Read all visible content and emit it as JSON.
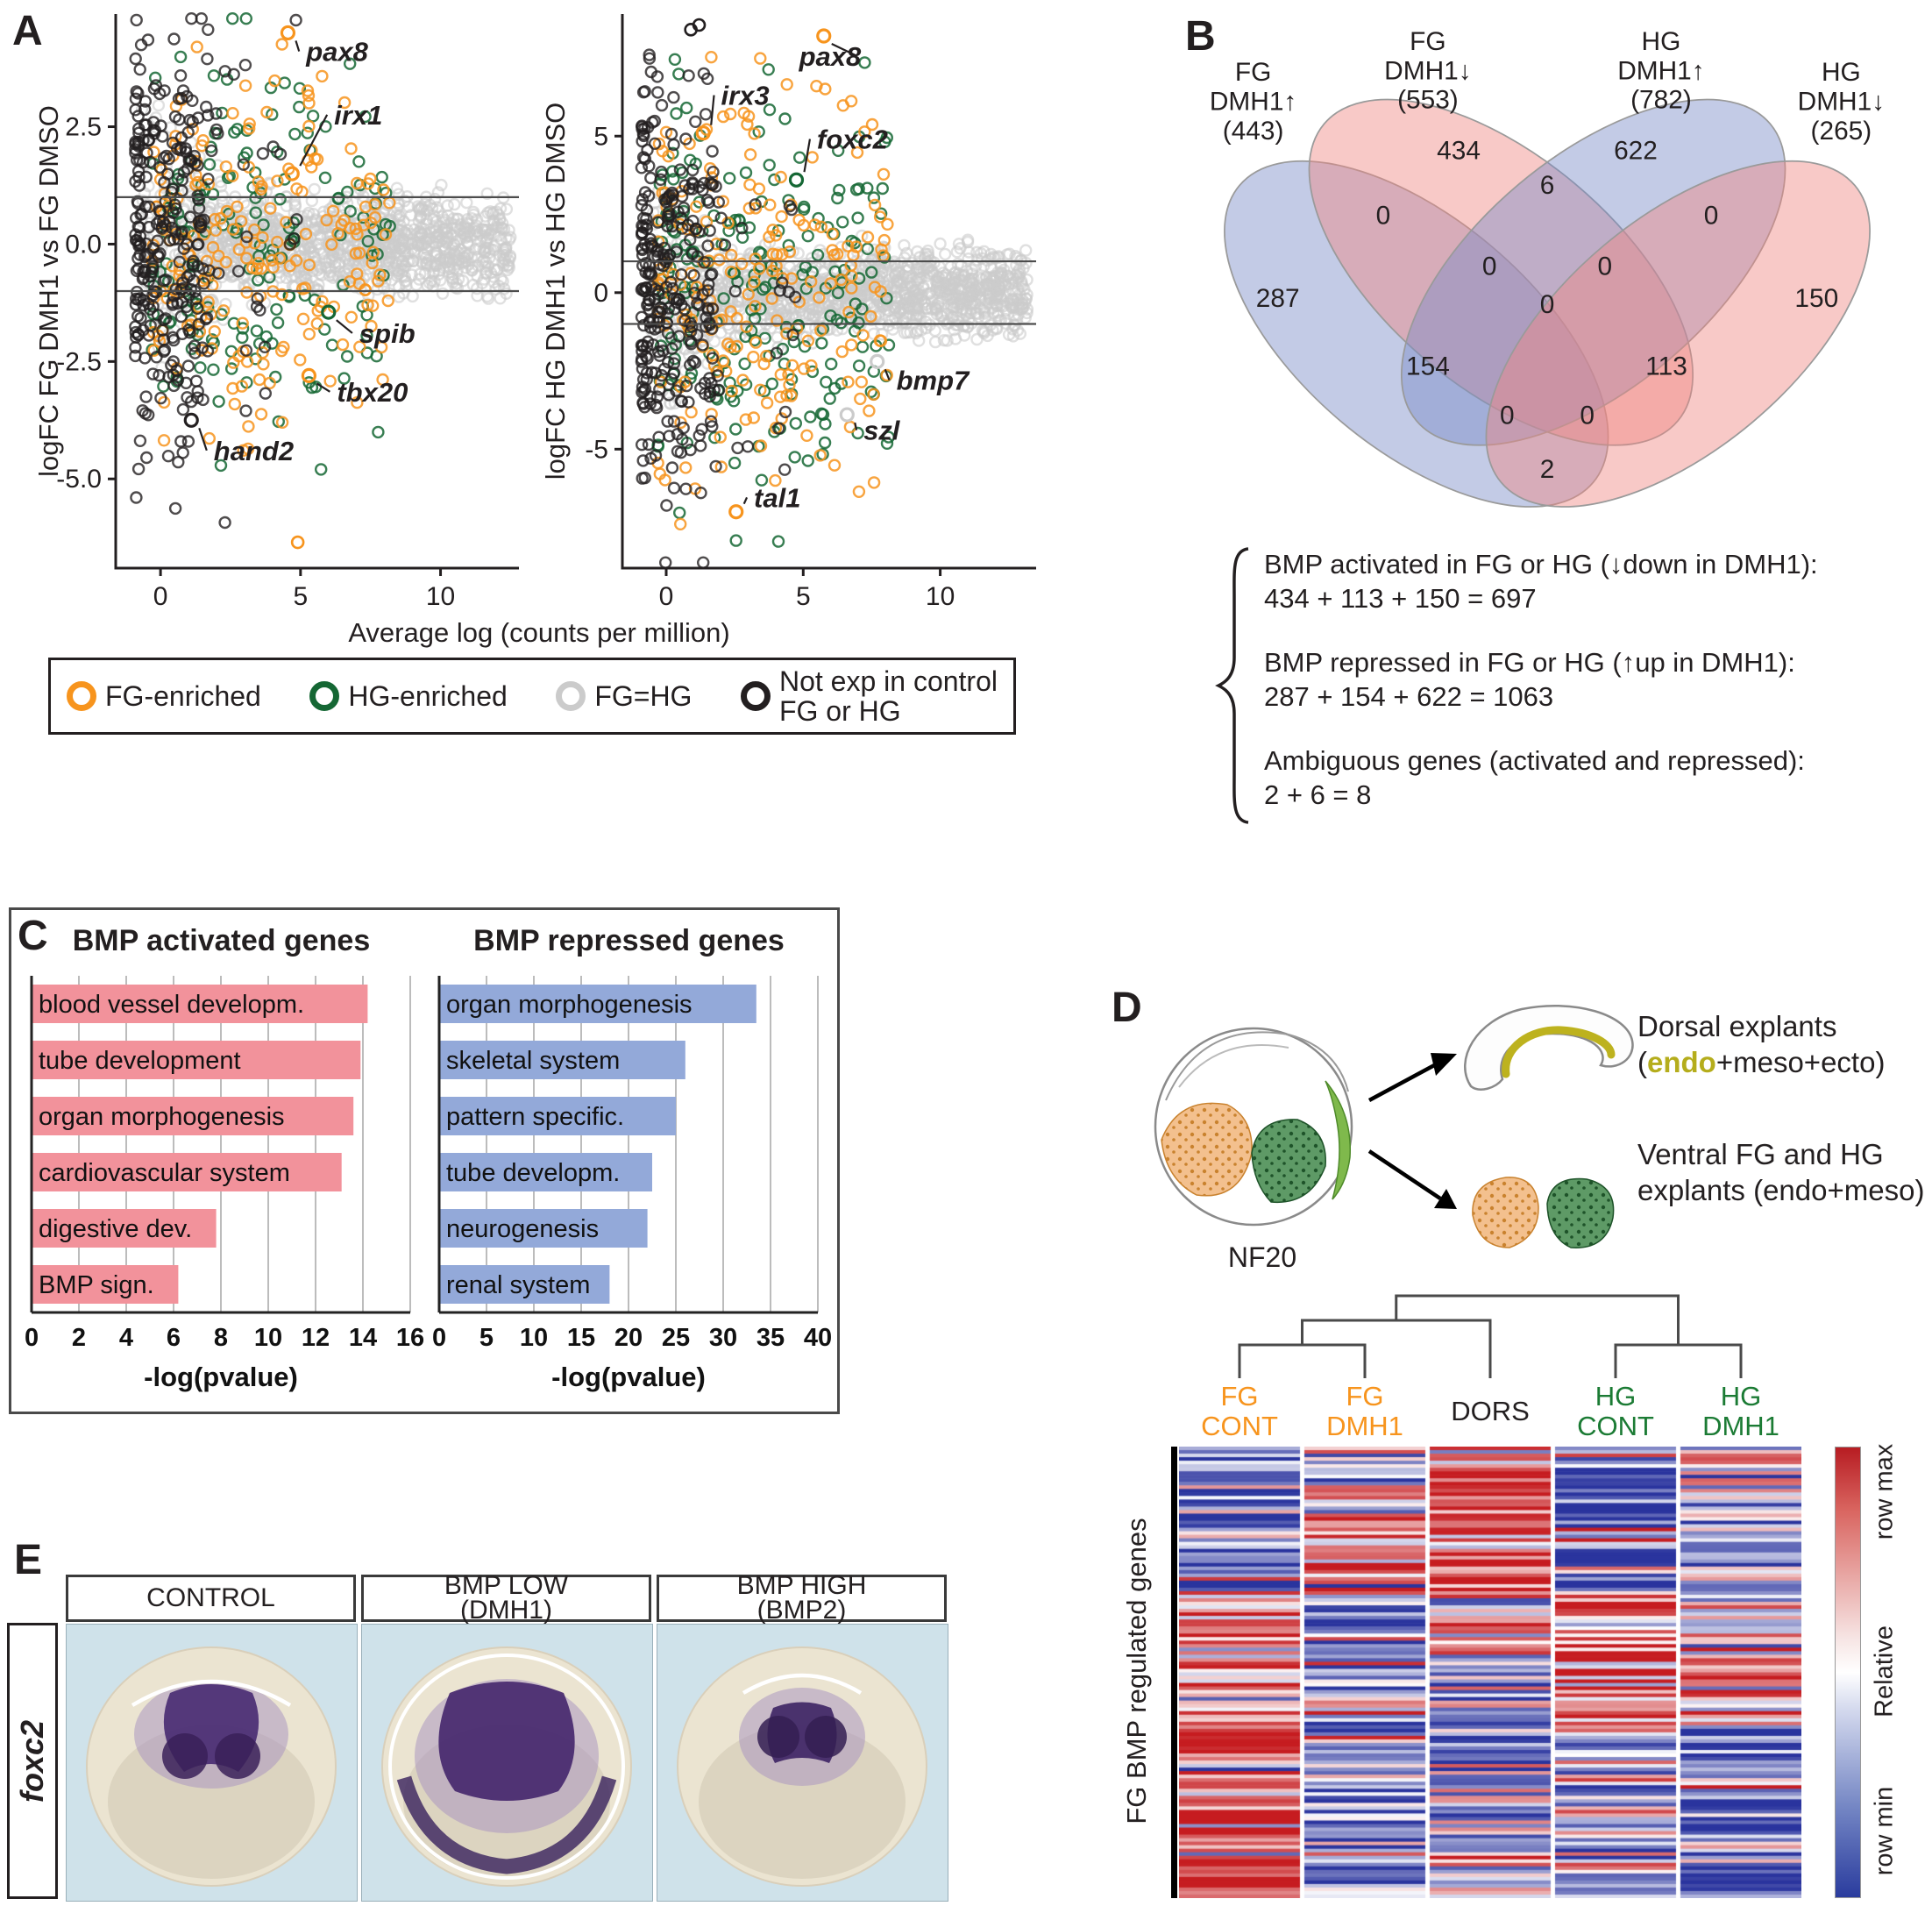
{
  "colors": {
    "fg_enriched": "#F7941D",
    "hg_enriched": "#156734",
    "fg_eq_hg": "#CBCBCB",
    "not_exp": "#231F20",
    "venn_blue": "#7B8CC8",
    "venn_red": "#F08783",
    "bar_pink": "#F2929B",
    "bar_blue": "#93A9D9",
    "fg_text": "#F7941D",
    "hg_text": "#1B7B34",
    "endo_text": "#B5AD1C"
  },
  "figure": {
    "panel_a": {
      "label": "A",
      "xlabel_shared": "Average log (counts per million)",
      "legend": [
        {
          "label": "FG-enriched",
          "color_key": "fg_enriched"
        },
        {
          "label": "HG-enriched",
          "color_key": "hg_enriched"
        },
        {
          "label": "FG=HG",
          "color_key": "fg_eq_hg"
        },
        {
          "label": "Not exp in control FG or HG",
          "lines": [
            "Not exp in control",
            "FG or HG"
          ],
          "color_key": "not_exp"
        }
      ]
    },
    "panel_b": {
      "label": "B",
      "sets": [
        {
          "lines": [
            "FG",
            "DMH1↑"
          ],
          "count": "(443)"
        },
        {
          "lines": [
            "FG",
            "DMH1↓"
          ],
          "count": "(553)"
        },
        {
          "lines": [
            "HG",
            "DMH1↑"
          ],
          "count": "(782)"
        },
        {
          "lines": [
            "HG",
            "DMH1↓"
          ],
          "count": "(265)"
        }
      ],
      "summary": [
        {
          "line1": "BMP activated in FG or HG (↓down in DMH1):",
          "line2": "434 + 113 + 150 = 697"
        },
        {
          "line1": "BMP repressed in FG or HG (↑up in DMH1):",
          "line2": "287 + 154 + 622 = 1063"
        },
        {
          "line1": "Ambiguous genes (activated and repressed):",
          "line2": "2 + 6 = 8"
        }
      ]
    },
    "panel_c": {
      "label": "C"
    },
    "panel_d": {
      "label": "D",
      "stage": "NF20",
      "dorsal_caption_line1": "Dorsal explants",
      "dorsal_caption_pre": "(",
      "dorsal_caption_endo": "endo",
      "dorsal_caption_post": "+meso+ecto)",
      "ventral_caption_line1": "Ventral FG and HG",
      "ventral_caption_line2": "explants (endo+meso)",
      "heatmap_row_label": "FG BMP regulated genes",
      "scale_label": "Relative",
      "scale_max": "row max",
      "scale_min": "row min",
      "columns": [
        {
          "lines": [
            "FG",
            "CONT"
          ],
          "color_key": "fg_text"
        },
        {
          "lines": [
            "FG",
            "DMH1"
          ],
          "color_key": "fg_text"
        },
        {
          "lines": [
            "DORS"
          ],
          "color_key": "not_exp"
        },
        {
          "lines": [
            "HG",
            "CONT"
          ],
          "color_key": "hg_text"
        },
        {
          "lines": [
            "HG",
            "DMH1"
          ],
          "color_key": "hg_text"
        }
      ]
    },
    "panel_e": {
      "label": "E",
      "gene": "foxc2",
      "conditions": [
        {
          "lines": [
            "CONTROL"
          ]
        },
        {
          "lines": [
            "BMP LOW",
            "(DMH1)"
          ]
        },
        {
          "lines": [
            "BMP HIGH",
            "(BMP2)"
          ]
        }
      ]
    }
  },
  "chart_data": [
    {
      "id": "ma_fg",
      "type": "scatter",
      "title": "MA plot FG DMH1 vs FG DMSO",
      "xlabel": "Average log (counts per million)",
      "ylabel": "logFC FG DMH1 vs FG DMSO",
      "xlim": [
        -1.6,
        12.8
      ],
      "ylim": [
        -6.9,
        4.9
      ],
      "yticks": [
        2.5,
        0,
        -2.5,
        -5
      ],
      "ytick_labels": [
        "2.5",
        "0.0",
        "-2.5",
        "-5.0"
      ],
      "xticks": [
        0,
        5,
        10
      ],
      "xtick_labels": [
        "0",
        "5",
        "10"
      ],
      "threshold_lines": [
        1,
        -1
      ],
      "point_classes": [
        "FG-enriched",
        "HG-enriched",
        "FG=HG",
        "Not exp in control FG or HG"
      ],
      "annotations": [
        {
          "gene": "pax8",
          "px": 4.55,
          "py": 4.5,
          "lx": 5.2,
          "ly": 3.9,
          "color_key": "fg_enriched"
        },
        {
          "gene": "irx1",
          "px": 4.7,
          "py": 1.5,
          "lx": 6.2,
          "ly": 2.55,
          "color_key": "fg_enriched"
        },
        {
          "gene": "spib",
          "px": 6.0,
          "py": -1.45,
          "lx": 7.1,
          "ly": -2.1,
          "color_key": "hg_enriched"
        },
        {
          "gene": "tbx20",
          "px": 5.3,
          "py": -2.8,
          "lx": 6.3,
          "ly": -3.35,
          "color_key": "fg_enriched"
        },
        {
          "gene": "hand2",
          "px": 1.1,
          "py": -3.75,
          "lx": 1.9,
          "ly": -4.6,
          "color_key": "not_exp"
        }
      ],
      "extra_points": [
        {
          "x": 4.9,
          "y": -6.35,
          "color_key": "fg_enriched"
        }
      ],
      "gen": {
        "seed": 7,
        "main_y": 1.0,
        "y_spread": 1.9,
        "y_left": 2.2,
        "groups": [
          {
            "color_key": "fg_eq_hg",
            "n": 1150,
            "kind": "main",
            "op": 0.6
          },
          {
            "color_key": "hg_enriched",
            "n": 165,
            "kind": "spread",
            "op": 0.85
          },
          {
            "color_key": "fg_enriched",
            "n": 205,
            "kind": "spread",
            "op": 0.85
          },
          {
            "color_key": "not_exp",
            "n": 300,
            "kind": "left",
            "op": 0.8
          }
        ]
      }
    },
    {
      "id": "ma_hg",
      "type": "scatter",
      "title": "MA plot HG DMH1 vs HG DMSO",
      "xlabel": "Average log (counts per million)",
      "ylabel": "logFC HG DMH1 vs HG DMSO",
      "xlim": [
        -1.6,
        13.5
      ],
      "ylim": [
        -8.8,
        8.9
      ],
      "yticks": [
        5,
        0,
        -5
      ],
      "ytick_labels": [
        "5",
        "0",
        "-5"
      ],
      "xticks": [
        0,
        5,
        10
      ],
      "xtick_labels": [
        "0",
        "5",
        "10"
      ],
      "threshold_lines": [
        1,
        -1
      ],
      "point_classes": [
        "FG-enriched",
        "HG-enriched",
        "FG=HG",
        "Not exp in control FG or HG"
      ],
      "annotations": [
        {
          "gene": "irx3",
          "px": 1.35,
          "py": 5.1,
          "lx": 2.0,
          "ly": 6.0,
          "color_key": "fg_enriched"
        },
        {
          "gene": "pax8",
          "px": 5.75,
          "py": 8.2,
          "lx": 4.85,
          "ly": 7.25,
          "color_key": "fg_enriched"
        },
        {
          "gene": "foxc2",
          "px": 4.75,
          "py": 3.6,
          "lx": 5.5,
          "ly": 4.6,
          "color_key": "hg_enriched"
        },
        {
          "gene": "bmp7",
          "px": 7.7,
          "py": -2.2,
          "lx": 8.4,
          "ly": -3.1,
          "color_key": "fg_eq_hg"
        },
        {
          "gene": "szl",
          "px": 6.6,
          "py": -3.9,
          "lx": 7.2,
          "ly": -4.7,
          "color_key": "fg_eq_hg"
        },
        {
          "gene": "tal1",
          "px": 2.55,
          "py": -7.0,
          "lx": 3.2,
          "ly": -6.85,
          "color_key": "fg_enriched"
        }
      ],
      "extra_points": [
        {
          "x": 0.9,
          "y": 8.4,
          "color_key": "not_exp"
        },
        {
          "x": 1.2,
          "y": 8.55,
          "color_key": "not_exp"
        }
      ],
      "gen": {
        "seed": 13,
        "main_y": 1.3,
        "y_spread": 3.0,
        "y_left": 3.2,
        "groups": [
          {
            "color_key": "fg_eq_hg",
            "n": 1150,
            "kind": "main",
            "op": 0.6
          },
          {
            "color_key": "hg_enriched",
            "n": 210,
            "kind": "spread",
            "op": 0.85
          },
          {
            "color_key": "fg_enriched",
            "n": 200,
            "kind": "spread",
            "op": 0.85
          },
          {
            "color_key": "not_exp",
            "n": 310,
            "kind": "left",
            "op": 0.8
          }
        ]
      }
    },
    {
      "id": "venn4",
      "type": "venn4",
      "title": "DMH1 regulated genes in FG and HG",
      "sets": [
        {
          "name": "FG DMH1 up",
          "total": 443
        },
        {
          "name": "FG DMH1 down",
          "total": 553
        },
        {
          "name": "HG DMH1 up",
          "total": 782
        },
        {
          "name": "HG DMH1 down",
          "total": 265
        }
      ],
      "regions": {
        "A": 287,
        "B": 434,
        "C": 622,
        "D": 150,
        "AB": 0,
        "BC": 6,
        "CD": 0,
        "AC": 154,
        "BD": 113,
        "AD": 2,
        "ABC": 0,
        "ABD": 0,
        "ACD": 0,
        "BCD": 0,
        "ABCD": 0
      }
    },
    {
      "id": "bmp_activated",
      "type": "bar",
      "orientation": "horizontal",
      "title": "BMP activated genes",
      "categories": [
        "blood vessel developm.",
        "tube development",
        "organ morphogenesis",
        "cardiovascular system",
        "digestive dev.",
        "BMP sign."
      ],
      "values": [
        14.2,
        13.9,
        13.6,
        13.1,
        7.8,
        6.2
      ],
      "xlabel": "-log(pvalue)",
      "xlim": [
        0,
        16
      ],
      "xticks": [
        0,
        2,
        4,
        6,
        8,
        10,
        12,
        14,
        16
      ],
      "xtick_labels": [
        "0",
        "2",
        "4",
        "6",
        "8",
        "10",
        "12",
        "14",
        "16"
      ],
      "bar_color_key": "bar_pink"
    },
    {
      "id": "bmp_repressed",
      "type": "bar",
      "orientation": "horizontal",
      "title": "BMP repressed genes",
      "categories": [
        "organ morphogenesis",
        "skeletal system",
        "pattern specific.",
        "tube developm.",
        "neurogenesis",
        "renal system"
      ],
      "values": [
        33.5,
        26,
        25,
        22.5,
        22,
        18
      ],
      "xlabel": "-log(pvalue)",
      "xlim": [
        0,
        40
      ],
      "xticks": [
        0,
        5,
        10,
        15,
        20,
        25,
        30,
        35,
        40
      ],
      "xtick_labels": [
        "0",
        "5",
        "10",
        "15",
        "20",
        "25",
        "30",
        "35",
        "40"
      ],
      "bar_color_key": "bar_blue"
    },
    {
      "id": "heatmap",
      "type": "heatmap",
      "title": "FG BMP regulated genes across explants",
      "columns": [
        "FG CONT",
        "FG DMH1",
        "DORS",
        "HG CONT",
        "HG DMH1"
      ],
      "row_group_label": "FG BMP regulated genes",
      "scale": {
        "title": "Relative",
        "max_label": "row max",
        "min_label": "row min"
      },
      "seed": 11,
      "noise": 0.5,
      "flip_prob": 0.1,
      "blocks": [
        {
          "rows": 20,
          "means": [
            -0.45,
            0.15,
            0.85,
            -0.75,
            0.05
          ]
        },
        {
          "rows": 22,
          "means": [
            -0.55,
            0.8,
            0.65,
            -0.7,
            -0.35
          ]
        },
        {
          "rows": 18,
          "means": [
            0.25,
            -0.7,
            0.05,
            0.45,
            -0.1
          ]
        },
        {
          "rows": 20,
          "means": [
            0.5,
            -0.6,
            -0.3,
            0.55,
            0.3
          ]
        },
        {
          "rows": 26,
          "means": [
            0.85,
            -0.8,
            -0.55,
            -0.1,
            -0.6
          ]
        },
        {
          "rows": 22,
          "means": [
            0.8,
            -0.65,
            0.15,
            -0.25,
            -0.8
          ]
        }
      ]
    }
  ]
}
